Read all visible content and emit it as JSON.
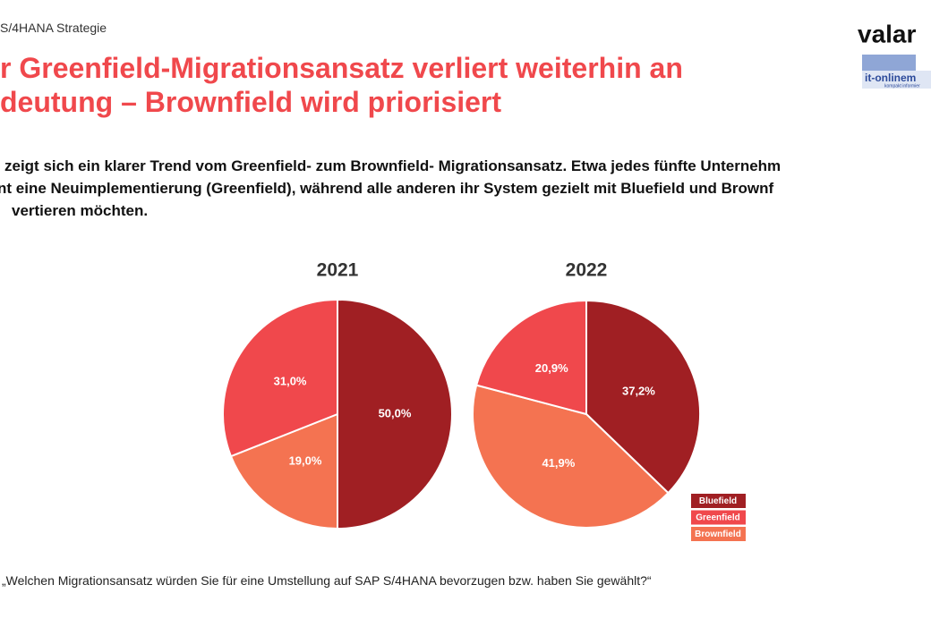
{
  "header": {
    "breadcrumb": "S/4HANA  Strategie",
    "title_lines": [
      "r Greenfield-Migrationsansatz verliert weiterhin an",
      "deutung – Brownfield wird priorisiert"
    ],
    "logo": "valar",
    "logo_sub": "it-onlinem",
    "logo_tagline": "kompakt informier"
  },
  "body_lines": [
    "zeigt sich ein klarer Trend vom Greenfield- zum Brownfield- Migrationsansatz. Etwa jedes fünfte Unternehm",
    "nt eine Neuimplementierung (Greenfield), während alle anderen ihr System gezielt mit Bluefield und Brownf",
    "vertieren möchten."
  ],
  "footnote": "„Welchen Migrationsansatz würden Sie für eine Umstellung auf SAP S/4HANA bevorzugen bzw. haben Sie gewählt?“",
  "chart_data": [
    {
      "type": "pie",
      "title": "2021",
      "categories": [
        "Bluefield",
        "Brownfield",
        "Greenfield"
      ],
      "values": [
        50.0,
        19.0,
        31.0
      ],
      "value_labels": [
        "50,0%",
        "19,0%",
        "31,0%"
      ],
      "colors": [
        "#a01f23",
        "#f47351",
        "#f0484c"
      ]
    },
    {
      "type": "pie",
      "title": "2022",
      "categories": [
        "Bluefield",
        "Brownfield",
        "Greenfield"
      ],
      "values": [
        37.2,
        41.9,
        20.9
      ],
      "value_labels": [
        "37,2%",
        "41,9%",
        "20,9%"
      ],
      "colors": [
        "#a01f23",
        "#f47351",
        "#f0484c"
      ]
    }
  ]
}
